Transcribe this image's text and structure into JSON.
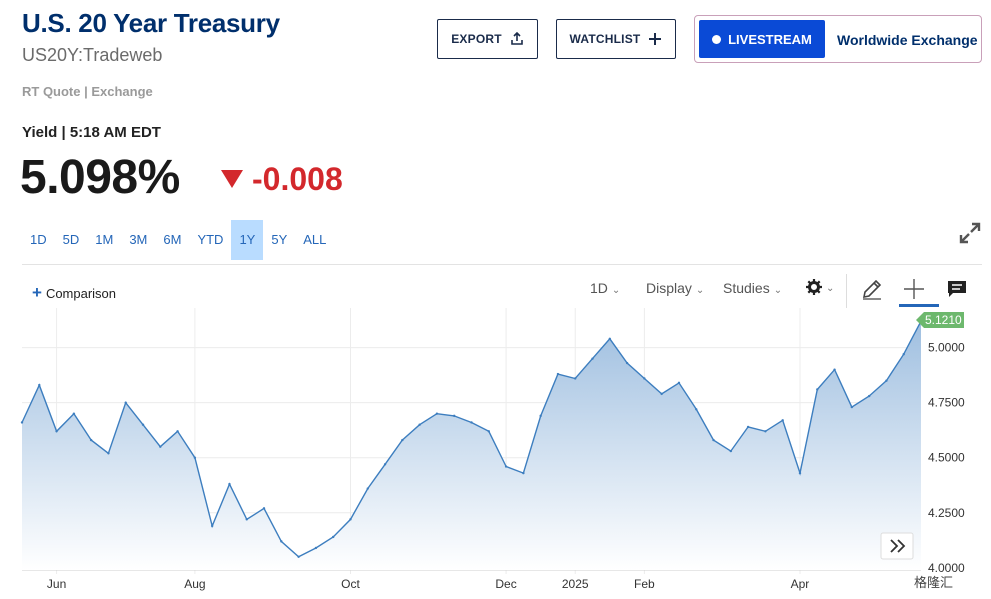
{
  "header": {
    "title": "U.S. 20 Year Treasury",
    "subtitle": "US20Y:Tradeweb",
    "rt_quote": "RT Quote | Exchange"
  },
  "actions": {
    "export_label": "EXPORT",
    "watchlist_label": "WATCHLIST",
    "livestream_label": "LIVESTREAM",
    "worldwide_label": "Worldwide Exchange"
  },
  "quote": {
    "yield_label": "Yield | 5:18 AM EDT",
    "price": "5.098%",
    "change": "-0.008",
    "change_color": "#d3282c"
  },
  "ranges": [
    "1D",
    "5D",
    "1M",
    "3M",
    "6M",
    "YTD",
    "1Y",
    "5Y",
    "ALL"
  ],
  "active_range": "1Y",
  "toolbar": {
    "comparison": "Comparison",
    "interval": "1D",
    "display": "Display",
    "studies": "Studies"
  },
  "icons": [
    "export-icon",
    "plus-icon",
    "expand-icon",
    "gear-icon",
    "pencil-icon",
    "crosshair-icon",
    "comment-icon",
    "double-chevron-right-icon"
  ],
  "watermark": "格隆汇",
  "chart_data": {
    "type": "area",
    "x_ticks": [
      "Jun",
      "Aug",
      "Oct",
      "Dec",
      "2025",
      "Feb",
      "Apr"
    ],
    "y_ticks": [
      "4.0000",
      "4.2500",
      "4.5000",
      "4.7500",
      "5.0000"
    ],
    "ylim": [
      3.99,
      5.18
    ],
    "last_value_label": "5.1210",
    "line_color": "#3d7ebf",
    "grid": true,
    "x": [
      "May 22",
      "May 29",
      "Jun 5",
      "Jun 12",
      "Jun 19",
      "Jun 26",
      "Jul 3",
      "Jul 10",
      "Jul 17",
      "Jul 24",
      "Jul 31",
      "Aug 7",
      "Aug 14",
      "Aug 21",
      "Aug 28",
      "Sep 4",
      "Sep 11",
      "Sep 18",
      "Sep 25",
      "Oct 2",
      "Oct 9",
      "Oct 16",
      "Oct 23",
      "Oct 30",
      "Nov 6",
      "Nov 13",
      "Nov 20",
      "Nov 27",
      "Dec 4",
      "Dec 11",
      "Dec 18",
      "Dec 25",
      "Jan 1",
      "Jan 8",
      "Jan 15",
      "Jan 22",
      "Jan 29",
      "Feb 5",
      "Feb 12",
      "Feb 19",
      "Feb 26",
      "Mar 5",
      "Mar 12",
      "Mar 19",
      "Mar 26",
      "Apr 2",
      "Apr 9",
      "Apr 16",
      "Apr 23",
      "Apr 30",
      "May 7",
      "May 14",
      "May 21"
    ],
    "values": [
      4.66,
      4.83,
      4.62,
      4.7,
      4.58,
      4.52,
      4.75,
      4.65,
      4.55,
      4.62,
      4.5,
      4.19,
      4.38,
      4.22,
      4.27,
      4.12,
      4.05,
      4.09,
      4.14,
      4.22,
      4.36,
      4.47,
      4.58,
      4.65,
      4.7,
      4.69,
      4.66,
      4.62,
      4.46,
      4.43,
      4.69,
      4.88,
      4.86,
      4.95,
      5.04,
      4.93,
      4.86,
      4.79,
      4.84,
      4.72,
      4.58,
      4.53,
      4.64,
      4.62,
      4.67,
      4.43,
      4.81,
      4.9,
      4.73,
      4.78,
      4.85,
      4.97,
      5.12
    ]
  }
}
